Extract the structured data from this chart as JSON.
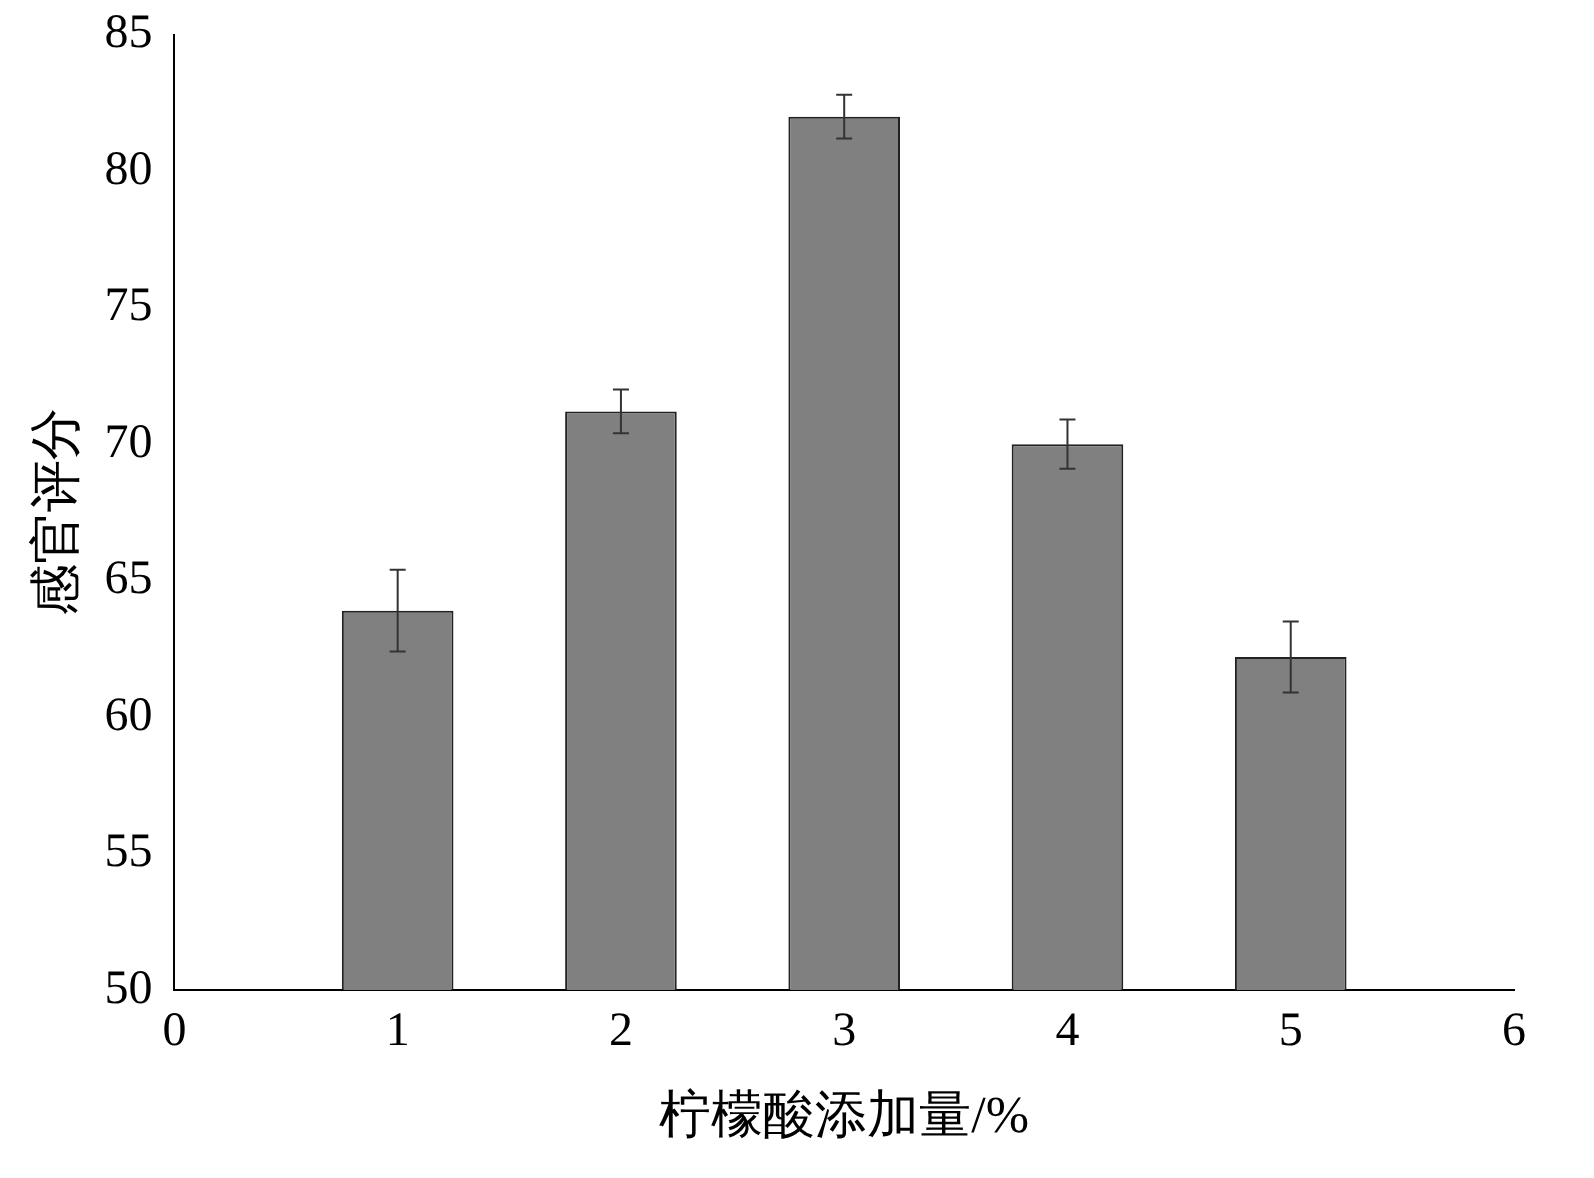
{
  "chart_data": {
    "type": "bar",
    "xlabel": "柠檬酸添加量/%",
    "ylabel": "感官评分",
    "x": [
      1,
      2,
      3,
      4,
      5
    ],
    "values": [
      63.9,
      71.2,
      82.0,
      70.0,
      62.2
    ],
    "errors": [
      1.5,
      0.8,
      0.8,
      0.9,
      1.3
    ],
    "color": "#808080",
    "xlim": [
      0,
      6
    ],
    "xticks": [
      0,
      1,
      2,
      3,
      4,
      5,
      6
    ],
    "ylim": [
      50,
      85
    ],
    "yticks": [
      50,
      55,
      60,
      65,
      70,
      75,
      80,
      85
    ],
    "grid": false,
    "legend": false
  }
}
